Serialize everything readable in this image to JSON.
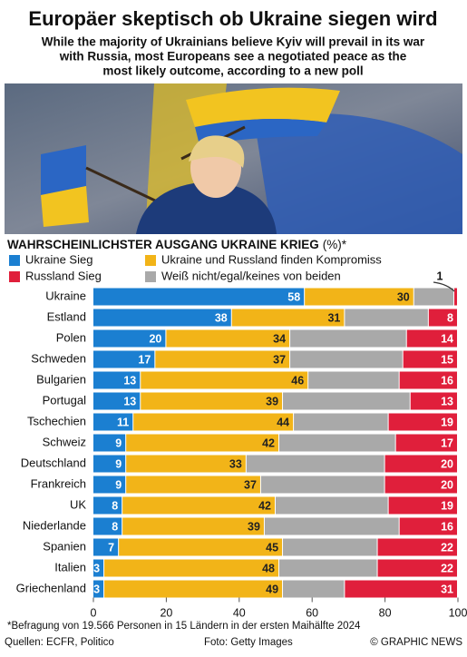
{
  "chart_data": {
    "type": "stacked-bar-horizontal",
    "title": "Europäer skeptisch ob Ukraine siegen wird",
    "subtitle": [
      "While the majority of Ukrainians believe Kyiv will prevail in its war",
      "with Russia, most Europeans see a negotiated peace as the",
      "most likely outcome, according to a new poll"
    ],
    "chart_title": "WAHRSCHEINLICHSTER AUSGANG UKRAINE KRIEG",
    "chart_unit": "(%)*",
    "categories": [
      "Ukraine",
      "Estland",
      "Polen",
      "Schweden",
      "Bulgarien",
      "Portugal",
      "Tschechien",
      "Schweiz",
      "Deutschland",
      "Frankreich",
      "UK",
      "Niederlande",
      "Spanien",
      "Italien",
      "Griechenland"
    ],
    "series": [
      {
        "name": "Ukraine Sieg",
        "color": "#1b7fd1",
        "labeled": true,
        "label_color": "#ffffff",
        "values": [
          58,
          38,
          20,
          17,
          13,
          13,
          11,
          9,
          9,
          9,
          8,
          8,
          7,
          3,
          3
        ]
      },
      {
        "name": "Ukraine und Russland finden Kompromiss",
        "color": "#f2b418",
        "labeled": true,
        "label_color": "#222222",
        "values": [
          30,
          31,
          34,
          37,
          46,
          39,
          44,
          42,
          33,
          37,
          42,
          39,
          45,
          48,
          49
        ]
      },
      {
        "name": "Weiß nicht/egal/keines von beiden",
        "color": "#a9a9a9",
        "labeled": false,
        "label_color": "#222222",
        "values": [
          11,
          23,
          32,
          31,
          25,
          35,
          26,
          32,
          38,
          34,
          31,
          37,
          26,
          27,
          17
        ]
      },
      {
        "name": "Russland Sieg",
        "color": "#e01f3b",
        "labeled": true,
        "label_color": "#ffffff",
        "values": [
          1,
          8,
          14,
          15,
          16,
          13,
          19,
          17,
          20,
          20,
          19,
          16,
          22,
          22,
          31
        ]
      }
    ],
    "legend_order": [
      0,
      1,
      3,
      2
    ],
    "xlim": [
      0,
      100
    ],
    "xticks": [
      0,
      20,
      40,
      60,
      80,
      100
    ],
    "note": "*Befragung von 19.566 Personen in 15 Ländern  in der ersten Maihälfte 2024",
    "source": "Quellen: ECFR, Politico",
    "photo_credit": "Foto: Getty Images",
    "copyright": "© GRAPHIC NEWS"
  }
}
